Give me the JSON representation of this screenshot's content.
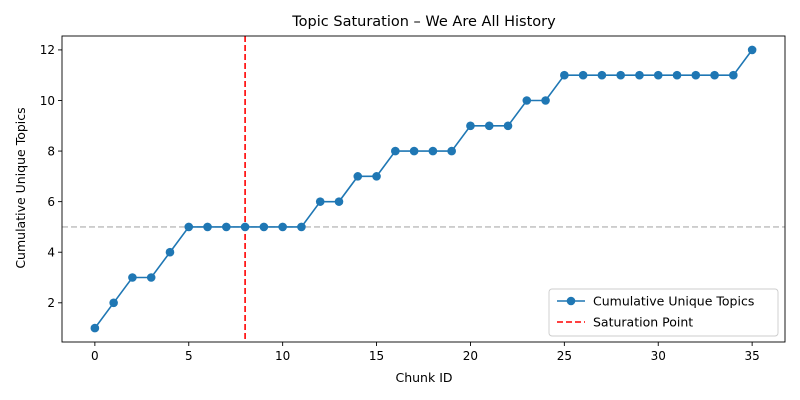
{
  "chart_data": {
    "type": "line",
    "title": "Topic Saturation – We Are All History",
    "xlabel": "Chunk ID",
    "ylabel": "Cumulative Unique Topics",
    "xlim": [
      -1.75,
      36.75
    ],
    "ylim": [
      0.45,
      12.55
    ],
    "xticks": [
      0,
      5,
      10,
      15,
      20,
      25,
      30,
      35
    ],
    "yticks": [
      2,
      4,
      6,
      8,
      10,
      12
    ],
    "grid": false,
    "legend_position": "bottom-right",
    "series": [
      {
        "name": "Cumulative Unique Topics",
        "color": "#1f77b4",
        "marker": "circle",
        "x": [
          0,
          1,
          2,
          3,
          4,
          5,
          6,
          7,
          8,
          9,
          10,
          11,
          12,
          13,
          14,
          15,
          16,
          17,
          18,
          19,
          20,
          21,
          22,
          23,
          24,
          25,
          26,
          27,
          28,
          29,
          30,
          31,
          32,
          33,
          34,
          35
        ],
        "values": [
          1,
          2,
          3,
          3,
          4,
          5,
          5,
          5,
          5,
          5,
          5,
          5,
          6,
          6,
          7,
          7,
          8,
          8,
          8,
          8,
          9,
          9,
          9,
          10,
          10,
          11,
          11,
          11,
          11,
          11,
          11,
          11,
          11,
          11,
          11,
          12
        ]
      }
    ],
    "reference_lines": [
      {
        "name": "Saturation Point",
        "orientation": "vertical",
        "value": 8,
        "color": "#ff0000",
        "style": "dashed"
      },
      {
        "name": "",
        "orientation": "horizontal",
        "value": 5,
        "color": "#bbbbbb",
        "style": "dashed"
      }
    ]
  }
}
